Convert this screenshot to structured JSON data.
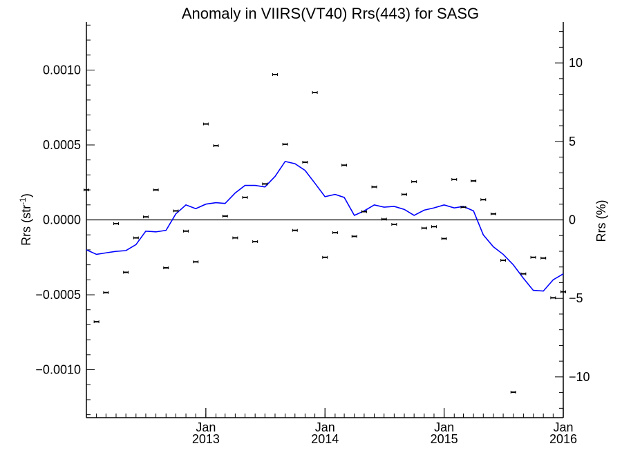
{
  "chart_data": {
    "type": "scatter",
    "title": "Anomaly in VIIRS(VT40) Rrs(443) for SASG",
    "ylabel_main": "Rrs (str",
    "ylabel_sup": "-1",
    "ylabel_end": ")",
    "ylabel_right": "Rrs (%)",
    "x_range": [
      "2012-01-01",
      "2016-01-01"
    ],
    "ylim": [
      -0.00132,
      0.00132
    ],
    "ylim_right": [
      -12.6,
      12.6
    ],
    "x_major_ticks": [
      {
        "date": "2013-01-01",
        "month": "Jan",
        "year": "2013"
      },
      {
        "date": "2014-01-01",
        "month": "Jan",
        "year": "2014"
      },
      {
        "date": "2015-01-01",
        "month": "Jan",
        "year": "2015"
      },
      {
        "date": "2016-01-01",
        "month": "Jan",
        "year": "2016"
      }
    ],
    "y_ticks": [
      {
        "value": 0.001,
        "label": "0.0010"
      },
      {
        "value": 0.0005,
        "label": "0.0005"
      },
      {
        "value": 0,
        "label": "0.0000"
      },
      {
        "value": -0.0005,
        "label": "−0.0005"
      },
      {
        "value": -0.001,
        "label": "−0.0010"
      }
    ],
    "y_right_ticks": [
      {
        "value": 10,
        "label": "10"
      },
      {
        "value": 5,
        "label": "5"
      },
      {
        "value": 0,
        "label": "0"
      },
      {
        "value": -5,
        "label": "−5"
      },
      {
        "value": -10,
        "label": "−10"
      }
    ],
    "zero_line": true,
    "anomaly_points": {
      "x": [
        "2012-01-01",
        "2012-02-01",
        "2012-03-01",
        "2012-04-01",
        "2012-05-01",
        "2012-06-01",
        "2012-07-01",
        "2012-08-01",
        "2012-09-01",
        "2012-10-01",
        "2012-11-01",
        "2012-12-01",
        "2013-01-01",
        "2013-02-01",
        "2013-03-01",
        "2013-04-01",
        "2013-05-01",
        "2013-06-01",
        "2013-07-01",
        "2013-08-01",
        "2013-09-01",
        "2013-10-01",
        "2013-11-01",
        "2013-12-01",
        "2014-01-01",
        "2014-02-01",
        "2014-03-01",
        "2014-04-01",
        "2014-05-01",
        "2014-06-01",
        "2014-07-01",
        "2014-08-01",
        "2014-09-01",
        "2014-10-01",
        "2014-11-01",
        "2014-12-01",
        "2015-01-01",
        "2015-02-01",
        "2015-03-01",
        "2015-04-01",
        "2015-05-01",
        "2015-06-01",
        "2015-07-01",
        "2015-08-01",
        "2015-09-01",
        "2015-10-01",
        "2015-11-01",
        "2015-12-01",
        "2016-01-01"
      ],
      "y": [
        0.0002,
        -0.00068,
        -0.000485,
        -2.5e-05,
        -0.00035,
        -0.00012,
        2e-05,
        0.0002,
        -0.00032,
        6e-05,
        -7.5e-05,
        -0.00028,
        0.00064,
        0.000495,
        2.5e-05,
        -0.00012,
        0.00015,
        -0.000145,
        0.00024,
        0.00097,
        0.000505,
        -7e-05,
        0.000385,
        0.00085,
        -0.00025,
        -8.5e-05,
        0.000365,
        -0.00011,
        5.5e-05,
        0.00022,
        5e-06,
        -3e-05,
        0.00017,
        0.000255,
        -5.5e-05,
        -4.5e-05,
        -0.000125,
        0.00027,
        8.5e-05,
        0.00026,
        0.000135,
        4e-05,
        -0.00027,
        -0.00115,
        -0.00036,
        -0.00025,
        -0.000255,
        -0.00052,
        -0.00048
      ]
    },
    "running_mean": {
      "color": "#0000ff",
      "x": [
        "2012-01-01",
        "2012-02-01",
        "2012-03-01",
        "2012-04-01",
        "2012-05-01",
        "2012-06-01",
        "2012-07-01",
        "2012-08-01",
        "2012-09-01",
        "2012-10-01",
        "2012-11-01",
        "2012-12-01",
        "2013-01-01",
        "2013-02-01",
        "2013-03-01",
        "2013-04-01",
        "2013-05-01",
        "2013-06-01",
        "2013-07-01",
        "2013-08-01",
        "2013-09-01",
        "2013-10-01",
        "2013-11-01",
        "2013-12-01",
        "2014-01-01",
        "2014-02-01",
        "2014-03-01",
        "2014-04-01",
        "2014-05-01",
        "2014-06-01",
        "2014-07-01",
        "2014-08-01",
        "2014-09-01",
        "2014-10-01",
        "2014-11-01",
        "2014-12-01",
        "2015-01-01",
        "2015-02-01",
        "2015-03-01",
        "2015-04-01",
        "2015-05-01",
        "2015-06-01",
        "2015-07-01",
        "2015-08-01",
        "2015-09-01",
        "2015-10-01",
        "2015-11-01",
        "2015-12-01",
        "2016-01-01"
      ],
      "y": [
        -0.0002,
        -0.00023,
        -0.00022,
        -0.00021,
        -0.000205,
        -0.000165,
        -7.5e-05,
        -8e-05,
        -7e-05,
        4e-05,
        0.0001,
        7.5e-05,
        0.000105,
        0.000115,
        0.00011,
        0.00018,
        0.00023,
        0.00023,
        0.00022,
        0.00029,
        0.00039,
        0.000375,
        0.00033,
        0.000245,
        0.000155,
        0.00017,
        0.00015,
        3e-05,
        6e-05,
        0.0001,
        8.5e-05,
        9e-05,
        7e-05,
        3e-05,
        6.5e-05,
        8e-05,
        0.0001,
        8e-05,
        9e-05,
        6e-05,
        -0.0001,
        -0.00018,
        -0.00023,
        -0.0003,
        -0.00039,
        -0.00047,
        -0.000475,
        -0.0004,
        -0.00036
      ]
    }
  }
}
